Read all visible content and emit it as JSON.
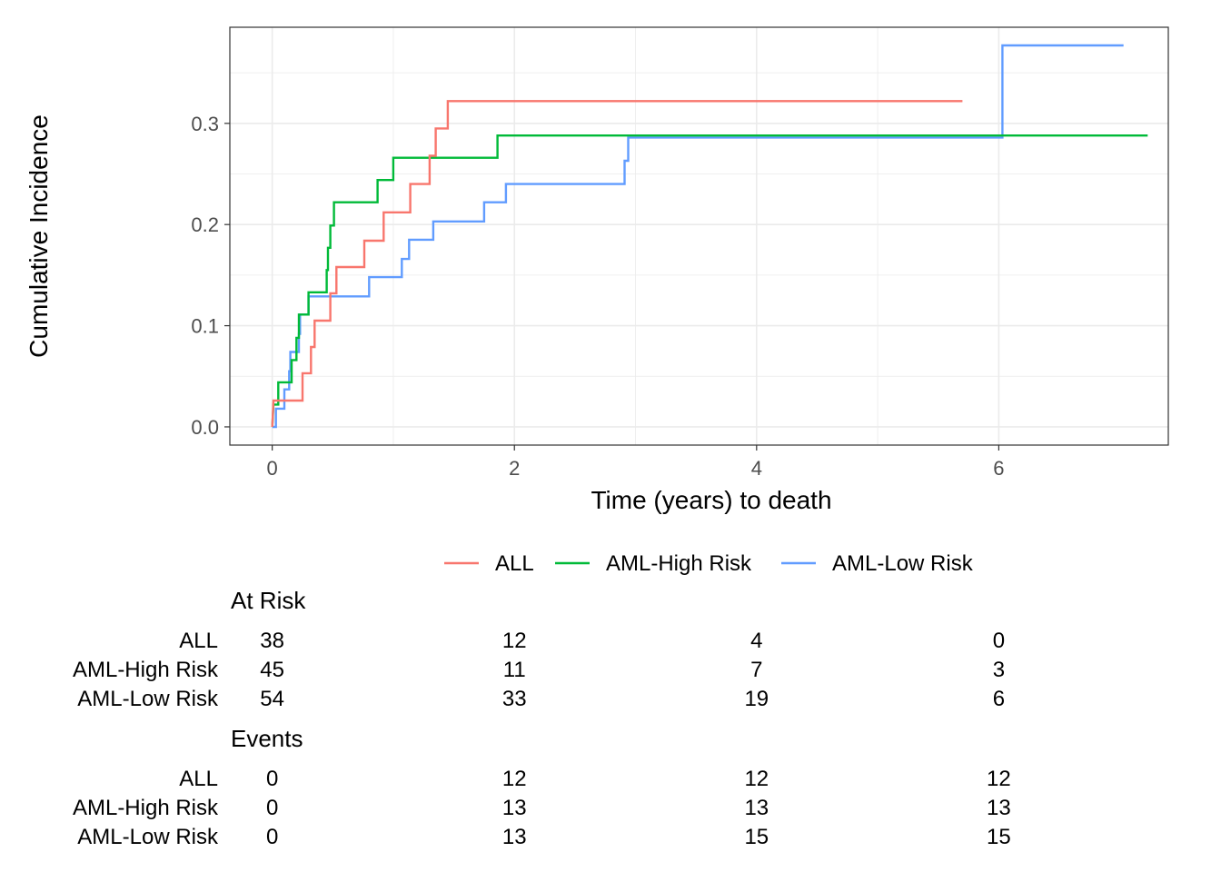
{
  "chart_data": {
    "type": "line",
    "step": true,
    "xlabel": "Time (years) to death",
    "ylabel": "Cumulative Incidence",
    "xlim": [
      -0.35,
      7.4
    ],
    "ylim": [
      -0.018,
      0.395
    ],
    "x_ticks": [
      0,
      2,
      4,
      6
    ],
    "x_tick_labels": [
      "0",
      "2",
      "4",
      "6"
    ],
    "y_ticks": [
      0.0,
      0.1,
      0.2,
      0.3
    ],
    "y_tick_labels": [
      "0.0",
      "0.1",
      "0.2",
      "0.3"
    ],
    "grid": true,
    "legend_position": "bottom",
    "series": [
      {
        "name": "ALL",
        "color": "#F8766D",
        "points": [
          [
            0.0,
            0.0
          ],
          [
            0.01,
            0.026
          ],
          [
            0.25,
            0.026
          ],
          [
            0.25,
            0.053
          ],
          [
            0.32,
            0.053
          ],
          [
            0.32,
            0.079
          ],
          [
            0.35,
            0.079
          ],
          [
            0.35,
            0.105
          ],
          [
            0.48,
            0.105
          ],
          [
            0.48,
            0.132
          ],
          [
            0.53,
            0.132
          ],
          [
            0.53,
            0.158
          ],
          [
            0.76,
            0.158
          ],
          [
            0.76,
            0.184
          ],
          [
            0.92,
            0.184
          ],
          [
            0.92,
            0.212
          ],
          [
            1.14,
            0.212
          ],
          [
            1.14,
            0.24
          ],
          [
            1.3,
            0.24
          ],
          [
            1.3,
            0.268
          ],
          [
            1.35,
            0.268
          ],
          [
            1.35,
            0.295
          ],
          [
            1.45,
            0.295
          ],
          [
            1.45,
            0.322
          ],
          [
            5.7,
            0.322
          ]
        ]
      },
      {
        "name": "AML-High Risk",
        "color": "#00BA38",
        "points": [
          [
            0.0,
            0.0
          ],
          [
            0.01,
            0.022
          ],
          [
            0.05,
            0.022
          ],
          [
            0.05,
            0.044
          ],
          [
            0.16,
            0.044
          ],
          [
            0.16,
            0.066
          ],
          [
            0.2,
            0.066
          ],
          [
            0.2,
            0.088
          ],
          [
            0.22,
            0.088
          ],
          [
            0.22,
            0.111
          ],
          [
            0.3,
            0.111
          ],
          [
            0.3,
            0.133
          ],
          [
            0.45,
            0.133
          ],
          [
            0.45,
            0.155
          ],
          [
            0.46,
            0.155
          ],
          [
            0.46,
            0.177
          ],
          [
            0.48,
            0.177
          ],
          [
            0.48,
            0.199
          ],
          [
            0.51,
            0.199
          ],
          [
            0.51,
            0.222
          ],
          [
            0.87,
            0.222
          ],
          [
            0.87,
            0.244
          ],
          [
            1.0,
            0.244
          ],
          [
            1.0,
            0.266
          ],
          [
            1.86,
            0.266
          ],
          [
            1.86,
            0.288
          ],
          [
            7.23,
            0.288
          ]
        ]
      },
      {
        "name": "AML-Low Risk",
        "color": "#619CFF",
        "points": [
          [
            0.0,
            0.0
          ],
          [
            0.03,
            0.0
          ],
          [
            0.03,
            0.018
          ],
          [
            0.1,
            0.018
          ],
          [
            0.1,
            0.037
          ],
          [
            0.14,
            0.037
          ],
          [
            0.14,
            0.055
          ],
          [
            0.15,
            0.055
          ],
          [
            0.15,
            0.074
          ],
          [
            0.22,
            0.074
          ],
          [
            0.22,
            0.092
          ],
          [
            0.23,
            0.092
          ],
          [
            0.23,
            0.111
          ],
          [
            0.3,
            0.111
          ],
          [
            0.3,
            0.129
          ],
          [
            0.8,
            0.129
          ],
          [
            0.8,
            0.148
          ],
          [
            1.07,
            0.148
          ],
          [
            1.07,
            0.166
          ],
          [
            1.13,
            0.166
          ],
          [
            1.13,
            0.185
          ],
          [
            1.33,
            0.185
          ],
          [
            1.33,
            0.203
          ],
          [
            1.75,
            0.203
          ],
          [
            1.75,
            0.222
          ],
          [
            1.93,
            0.222
          ],
          [
            1.93,
            0.24
          ],
          [
            2.91,
            0.24
          ],
          [
            2.91,
            0.263
          ],
          [
            2.94,
            0.263
          ],
          [
            2.94,
            0.286
          ],
          [
            6.03,
            0.286
          ],
          [
            6.03,
            0.377
          ],
          [
            7.03,
            0.377
          ]
        ]
      }
    ]
  },
  "legend": [
    {
      "name": "ALL",
      "color": "#F8766D"
    },
    {
      "name": "AML-High Risk",
      "color": "#00BA38"
    },
    {
      "name": "AML-Low Risk",
      "color": "#619CFF"
    }
  ],
  "tables": [
    {
      "title": "At Risk",
      "times": [
        0,
        2,
        4,
        6
      ],
      "rows": [
        {
          "label": "ALL",
          "values": [
            "38",
            "12",
            "4",
            "0"
          ]
        },
        {
          "label": "AML-High Risk",
          "values": [
            "45",
            "11",
            "7",
            "3"
          ]
        },
        {
          "label": "AML-Low Risk",
          "values": [
            "54",
            "33",
            "19",
            "6"
          ]
        }
      ]
    },
    {
      "title": "Events",
      "times": [
        0,
        2,
        4,
        6
      ],
      "rows": [
        {
          "label": "ALL",
          "values": [
            "0",
            "12",
            "12",
            "12"
          ]
        },
        {
          "label": "AML-High Risk",
          "values": [
            "0",
            "13",
            "13",
            "13"
          ]
        },
        {
          "label": "AML-Low Risk",
          "values": [
            "0",
            "13",
            "15",
            "15"
          ]
        }
      ]
    }
  ]
}
